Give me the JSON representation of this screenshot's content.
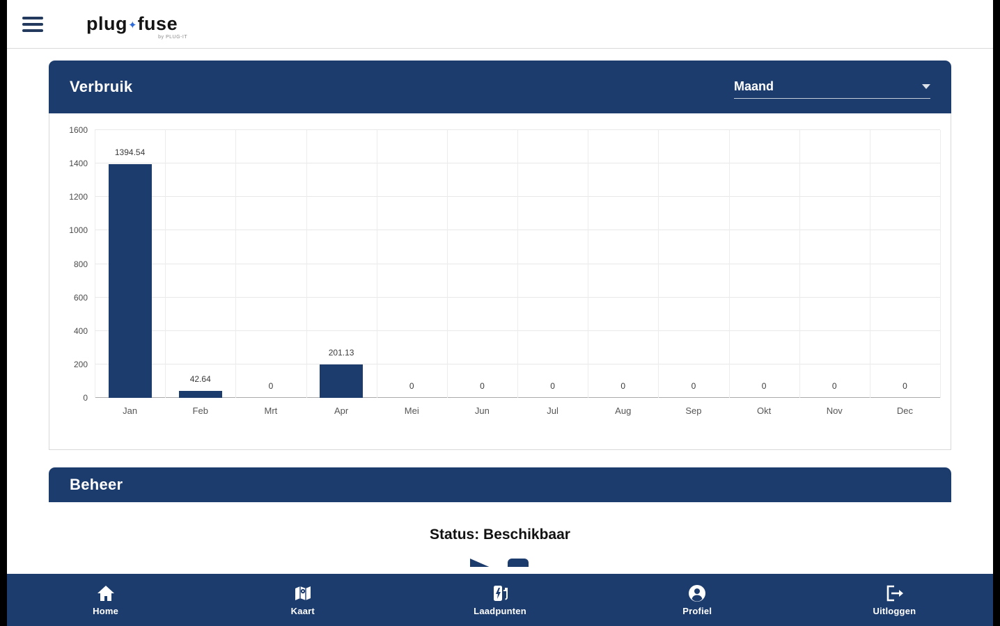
{
  "colors": {
    "navy": "#1d3c6e",
    "accent_blue": "#2f6bd8",
    "bar": "#1d3c6e"
  },
  "header": {
    "logo_plug": "plug",
    "logo_spark": "✦",
    "logo_fuse": "fuse",
    "logo_sub": "by PLUG-IT"
  },
  "verbruik_card": {
    "title": "Verbruik",
    "period_select": {
      "value": "Maand"
    }
  },
  "chart_data": {
    "type": "bar",
    "title": "Verbruik",
    "categories": [
      "Jan",
      "Feb",
      "Mrt",
      "Apr",
      "Mei",
      "Jun",
      "Jul",
      "Aug",
      "Sep",
      "Okt",
      "Nov",
      "Dec"
    ],
    "values": [
      1394.54,
      42.64,
      0,
      201.13,
      0,
      0,
      0,
      0,
      0,
      0,
      0,
      0
    ],
    "value_labels": [
      "1394.54",
      "42.64",
      "0",
      "201.13",
      "0",
      "0",
      "0",
      "0",
      "0",
      "0",
      "0",
      "0"
    ],
    "ylim": [
      0,
      1600
    ],
    "yticks": [
      0,
      200,
      400,
      600,
      800,
      1000,
      1200,
      1400,
      1600
    ],
    "grid": true,
    "legend": "none",
    "bar_color": "#1d3c6e"
  },
  "beheer_card": {
    "title": "Beheer",
    "status_text": "Status: Beschikbaar"
  },
  "bottom_nav": {
    "items": [
      {
        "label": "Home",
        "icon": "home-icon"
      },
      {
        "label": "Kaart",
        "icon": "map-icon"
      },
      {
        "label": "Laadpunten",
        "icon": "charging-station-icon"
      },
      {
        "label": "Profiel",
        "icon": "profile-icon"
      },
      {
        "label": "Uitloggen",
        "icon": "logout-icon"
      }
    ]
  }
}
